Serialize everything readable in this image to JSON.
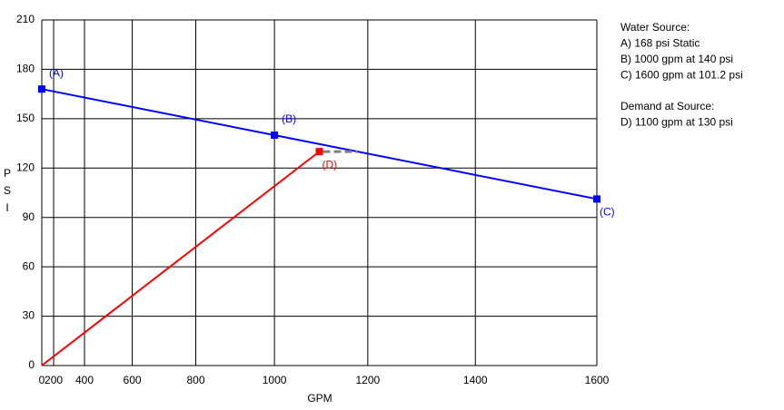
{
  "chart_data": {
    "type": "line",
    "xlabel": "GPM",
    "ylabel": [
      "P",
      "S",
      "I"
    ],
    "xscale": "power",
    "xscale_exponent": 1.85,
    "xlim": [
      0,
      1600
    ],
    "xticks": [
      0,
      200,
      400,
      600,
      800,
      1000,
      1200,
      1400,
      1600
    ],
    "ylim": [
      0,
      210
    ],
    "yticks": [
      0,
      30,
      60,
      90,
      120,
      150,
      180,
      210
    ],
    "grid": true,
    "series": [
      {
        "color": "#0000ff",
        "x": [
          0,
          1000,
          1600
        ],
        "values": [
          168,
          140,
          101.2
        ],
        "point_labels": [
          "(A)",
          "(B)",
          "(C)"
        ]
      },
      {
        "color": "#ff0000",
        "x": [
          0,
          1100
        ],
        "values": [
          0,
          130
        ],
        "point_labels": [
          null,
          "(D)"
        ]
      }
    ],
    "notes": [
      {
        "title": "Water Source:",
        "lines": [
          "A) 168 psi Static",
          "B) 1000 gpm at 140 psi",
          "C) 1600 gpm at 101.2 psi"
        ]
      },
      {
        "title": "Demand at Source:",
        "lines": [
          "D) 1100 gpm at 130 psi"
        ]
      }
    ]
  }
}
